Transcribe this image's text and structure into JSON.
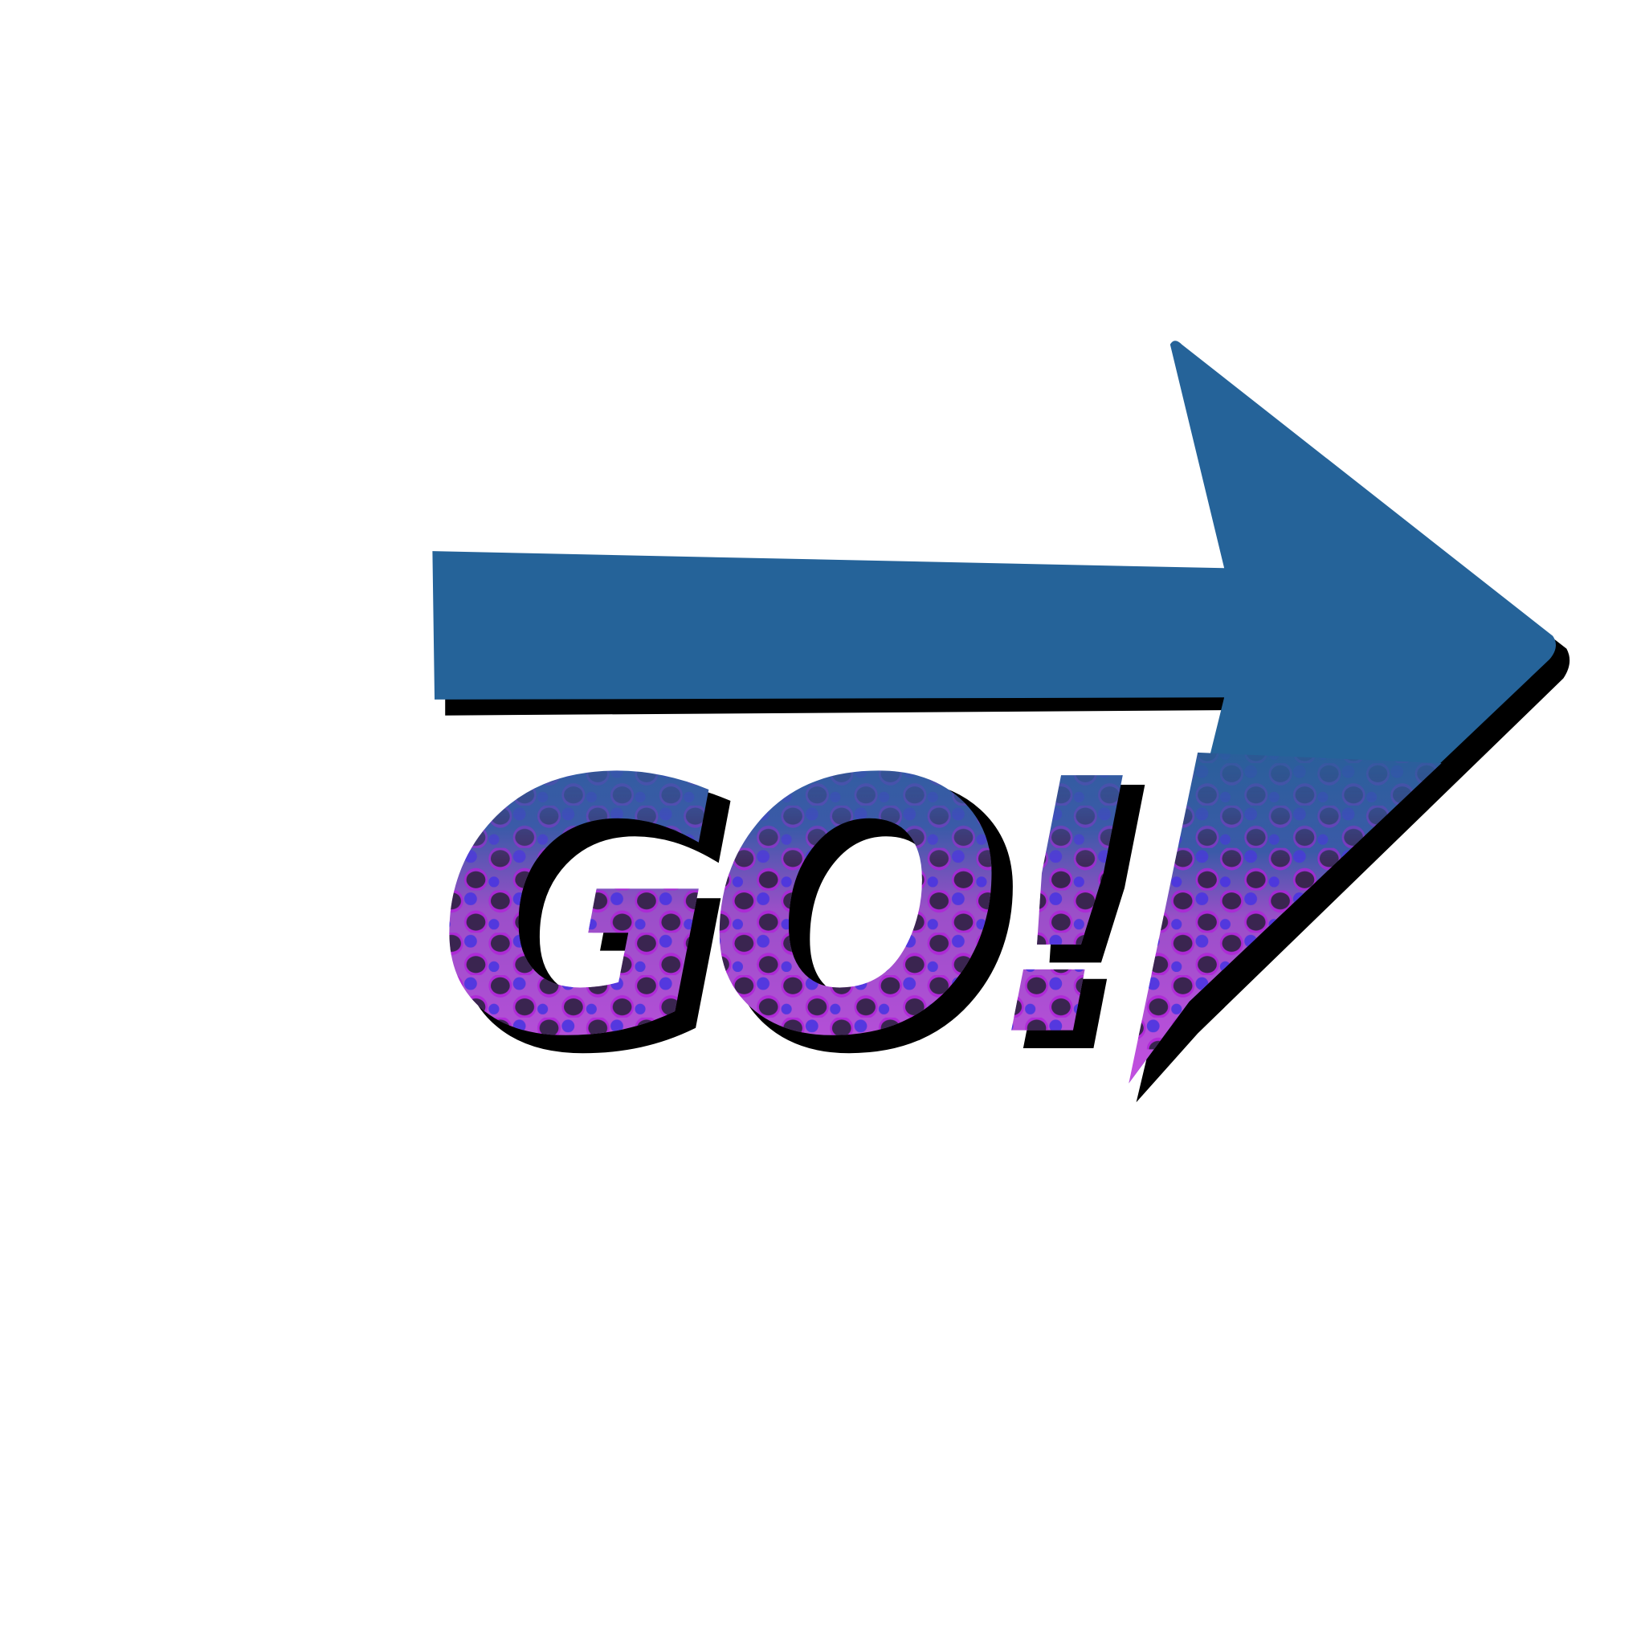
{
  "text": "GO!"
}
